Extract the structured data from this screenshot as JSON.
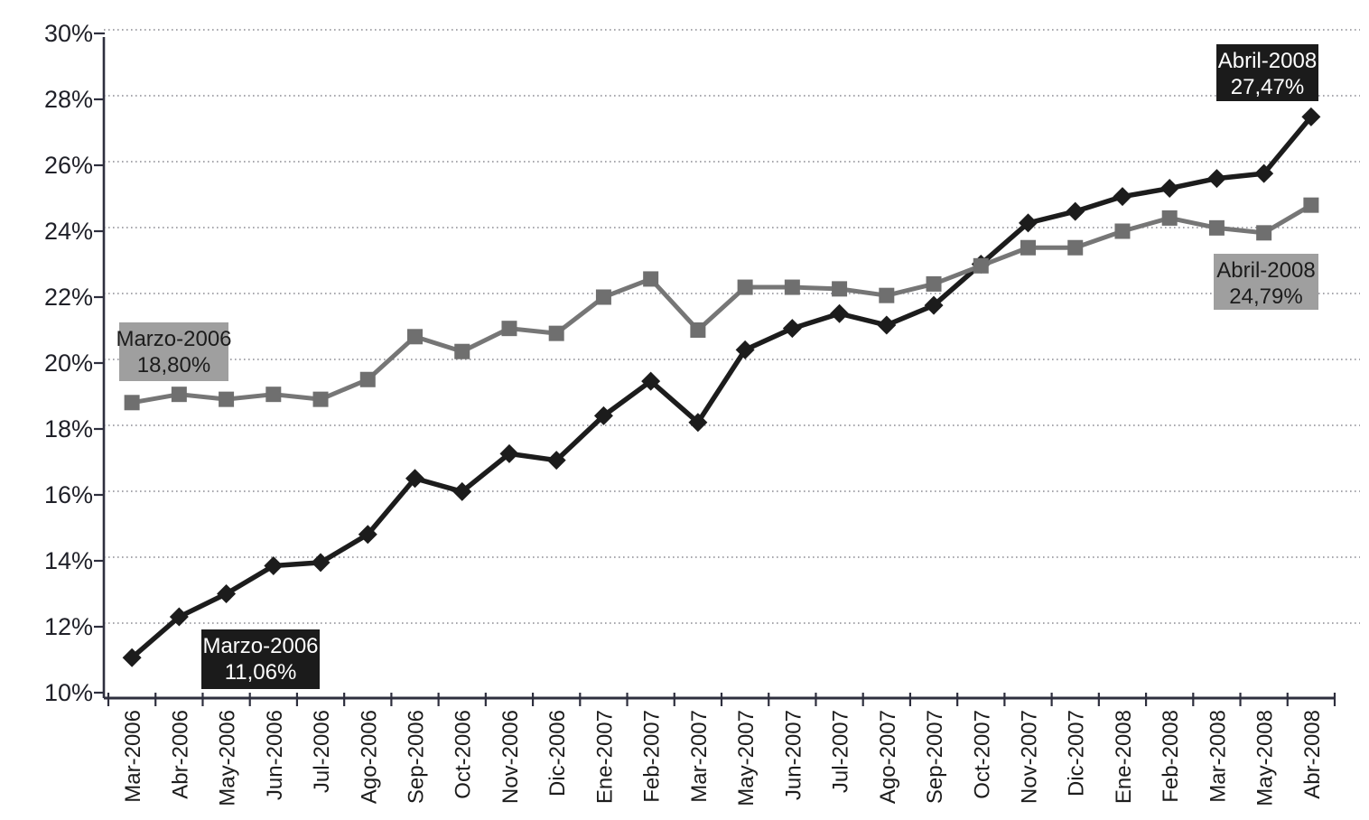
{
  "chart_data": {
    "type": "line",
    "title": "",
    "xlabel": "",
    "ylabel": "",
    "legend": "none",
    "grid": "horizontal-dotted",
    "ylim": [
      10,
      30
    ],
    "y_tick_step": 2,
    "y_tick_labels": [
      "10%",
      "12%",
      "14%",
      "16%",
      "18%",
      "20%",
      "22%",
      "24%",
      "26%",
      "28%",
      "30%"
    ],
    "categories": [
      "Mar-2006",
      "Abr-2006",
      "May-2006",
      "Jun-2006",
      "Jul-2006",
      "Ago-2006",
      "Sep-2006",
      "Oct-2006",
      "Nov-2006",
      "Dic-2006",
      "Ene-2007",
      "Feb-2007",
      "Mar-2007",
      "May-2007",
      "Jun-2007",
      "Jul-2007",
      "Ago-2007",
      "Sep-2007",
      "Oct-2007",
      "Nov-2007",
      "Dic-2007",
      "Ene-2008",
      "Feb-2008",
      "Mar-2008",
      "May-2008",
      "Abr-2008"
    ],
    "series": [
      {
        "id": "series-1",
        "marker": "diamond",
        "color_key": "dark",
        "values": [
          11.06,
          12.3,
          13.0,
          13.85,
          13.95,
          14.8,
          16.5,
          16.1,
          17.25,
          17.05,
          18.4,
          19.45,
          18.2,
          20.4,
          21.05,
          21.5,
          21.15,
          21.75,
          23.0,
          24.25,
          24.6,
          25.05,
          25.3,
          25.6,
          25.75,
          27.47
        ]
      },
      {
        "id": "series-2",
        "marker": "square",
        "color_key": "gray",
        "values": [
          18.8,
          19.05,
          18.9,
          19.05,
          18.9,
          19.5,
          20.8,
          20.35,
          21.05,
          20.9,
          22.0,
          22.55,
          21.0,
          22.3,
          22.3,
          22.25,
          22.05,
          22.4,
          22.95,
          23.5,
          23.5,
          24.0,
          24.4,
          24.1,
          23.95,
          24.79
        ]
      }
    ],
    "annotations": [
      {
        "id": "ann-gray-start",
        "lines": [
          "Marzo-2006",
          "18,80%"
        ],
        "style": "gray",
        "series": "series-2",
        "point": "first",
        "value": 18.8
      },
      {
        "id": "ann-dark-start",
        "lines": [
          "Marzo-2006",
          "11,06%"
        ],
        "style": "dark",
        "series": "series-1",
        "point": "first",
        "value": 11.06
      },
      {
        "id": "ann-dark-end",
        "lines": [
          "Abril-2008",
          "27,47%"
        ],
        "style": "dark",
        "series": "series-1",
        "point": "last",
        "value": 27.47
      },
      {
        "id": "ann-gray-end",
        "lines": [
          "Abril-2008",
          "24,79%"
        ],
        "style": "gray",
        "series": "series-2",
        "point": "last",
        "value": 24.79
      }
    ],
    "colors": {
      "dark_series": "#1c1c1c",
      "gray_series": "#767676",
      "gray_marker": "#6f6f6f",
      "annotation_dark_bg": "#1b1b1b",
      "annotation_dark_text": "#ffffff",
      "annotation_gray_bg": "#9f9f9f",
      "annotation_gray_text": "#1c1c1c",
      "axis": "#2e2f3e",
      "gridline": "#8b8b93",
      "tick_label": "#1f2028"
    }
  }
}
